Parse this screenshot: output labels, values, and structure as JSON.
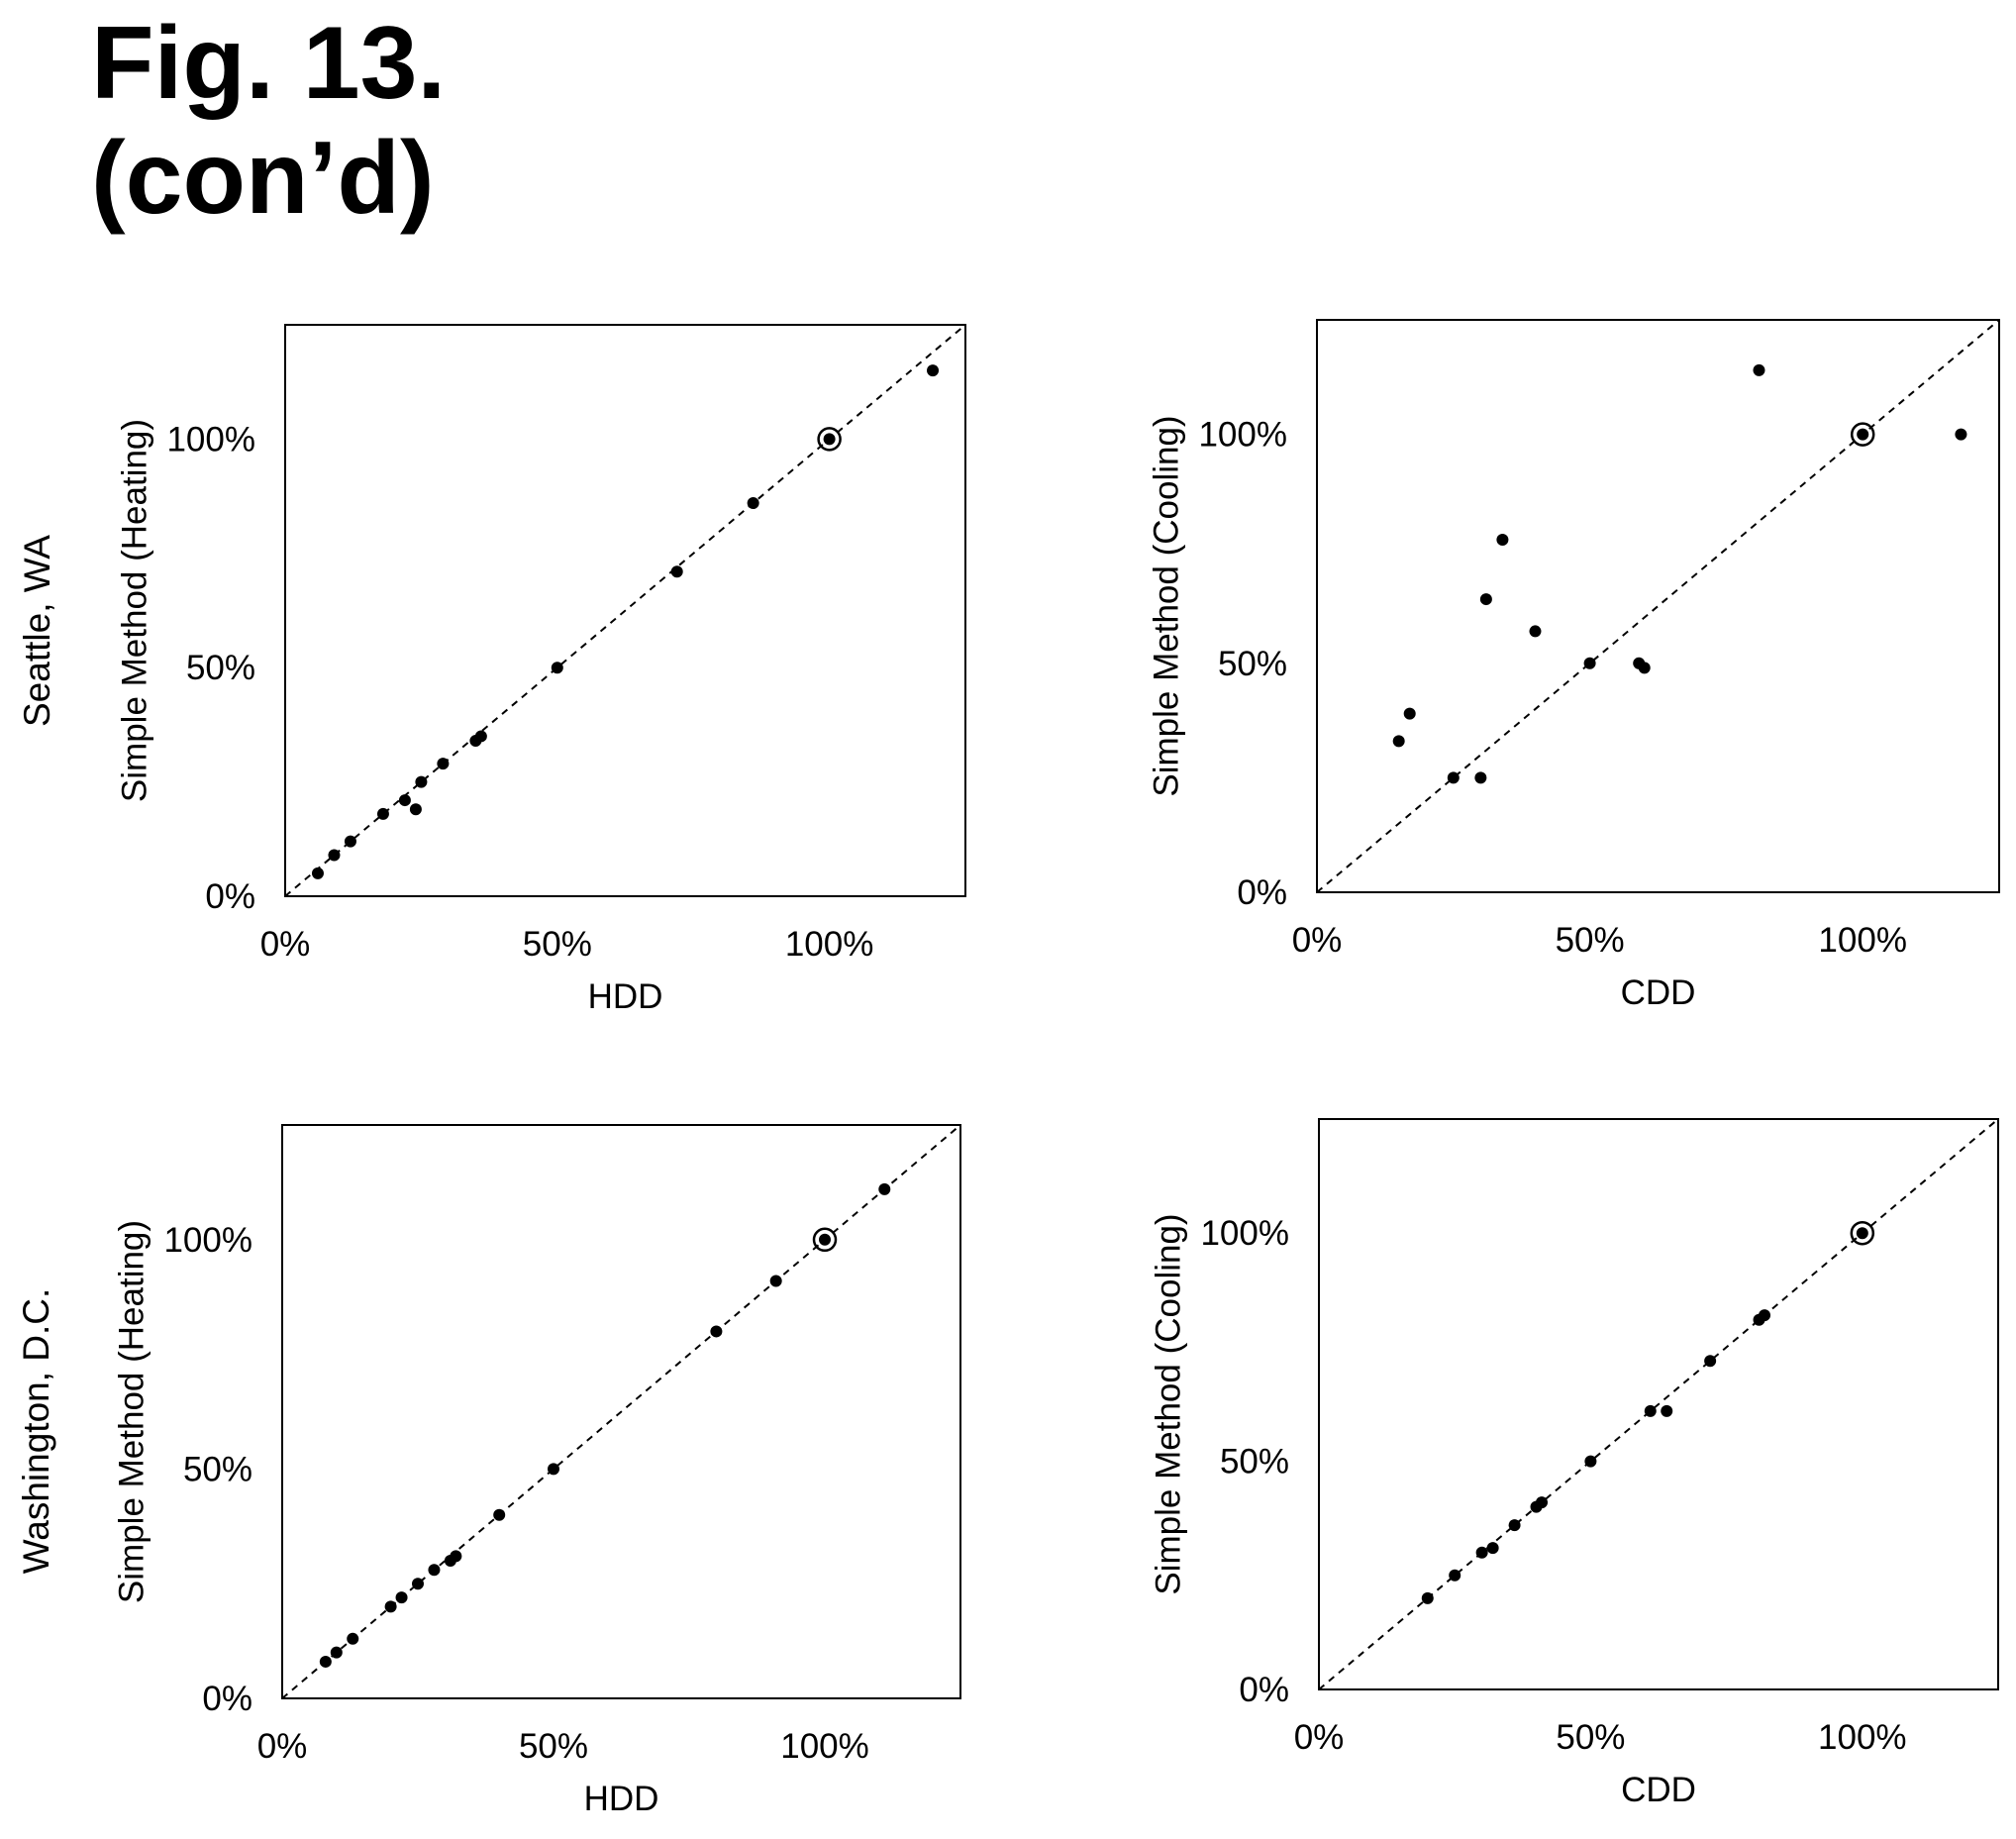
{
  "figure": {
    "title_line1": "Fig. 13.",
    "title_line2": "(con’d)",
    "row_labels": [
      "Seattle, WA",
      "Washington, D.C."
    ]
  },
  "chart_data": [
    {
      "type": "scatter",
      "row": "Seattle, WA",
      "xlabel": "HDD",
      "ylabel": "Simple Method (Heating)",
      "xlim": [
        0,
        125
      ],
      "ylim": [
        0,
        125
      ],
      "xticks": [
        0,
        50,
        100
      ],
      "yticks": [
        0,
        50,
        100
      ],
      "xtick_labels": [
        "0%",
        "50%",
        "100%"
      ],
      "ytick_labels": [
        "0%",
        "50%",
        "100%"
      ],
      "reference_line": "y = x (dashed)",
      "highlighted_point": [
        100,
        100
      ],
      "points": [
        [
          6,
          5
        ],
        [
          9,
          9
        ],
        [
          12,
          12
        ],
        [
          18,
          18
        ],
        [
          22,
          21
        ],
        [
          24,
          19
        ],
        [
          25,
          25
        ],
        [
          29,
          29
        ],
        [
          35,
          34
        ],
        [
          36,
          35
        ],
        [
          50,
          50
        ],
        [
          72,
          71
        ],
        [
          86,
          86
        ],
        [
          100,
          100
        ],
        [
          119,
          115
        ]
      ]
    },
    {
      "type": "scatter",
      "row": "Seattle, WA",
      "xlabel": "CDD",
      "ylabel": "Simple Method (Cooling)",
      "xlim": [
        0,
        125
      ],
      "ylim": [
        0,
        125
      ],
      "xticks": [
        0,
        50,
        100
      ],
      "yticks": [
        0,
        50,
        100
      ],
      "xtick_labels": [
        "0%",
        "50%",
        "100%"
      ],
      "ytick_labels": [
        "0%",
        "50%",
        "100%"
      ],
      "reference_line": "y = x (dashed)",
      "highlighted_point": [
        100,
        100
      ],
      "points": [
        [
          15,
          33
        ],
        [
          17,
          39
        ],
        [
          25,
          25
        ],
        [
          30,
          25
        ],
        [
          31,
          64
        ],
        [
          34,
          77
        ],
        [
          40,
          57
        ],
        [
          50,
          50
        ],
        [
          59,
          50
        ],
        [
          60,
          49
        ],
        [
          81,
          114
        ],
        [
          100,
          100
        ],
        [
          118,
          100
        ]
      ]
    },
    {
      "type": "scatter",
      "row": "Washington, D.C.",
      "xlabel": "HDD",
      "ylabel": "Simple Method (Heating)",
      "xlim": [
        0,
        125
      ],
      "ylim": [
        0,
        125
      ],
      "xticks": [
        0,
        50,
        100
      ],
      "yticks": [
        0,
        50,
        100
      ],
      "xtick_labels": [
        "0%",
        "50%",
        "100%"
      ],
      "ytick_labels": [
        "0%",
        "50%",
        "100%"
      ],
      "reference_line": "y = x (dashed)",
      "highlighted_point": [
        100,
        100
      ],
      "points": [
        [
          8,
          8
        ],
        [
          10,
          10
        ],
        [
          13,
          13
        ],
        [
          20,
          20
        ],
        [
          22,
          22
        ],
        [
          25,
          25
        ],
        [
          28,
          28
        ],
        [
          31,
          30
        ],
        [
          32,
          31
        ],
        [
          40,
          40
        ],
        [
          50,
          50
        ],
        [
          80,
          80
        ],
        [
          91,
          91
        ],
        [
          100,
          100
        ],
        [
          111,
          111
        ]
      ]
    },
    {
      "type": "scatter",
      "row": "Washington, D.C.",
      "xlabel": "CDD",
      "ylabel": "Simple Method (Cooling)",
      "xlim": [
        0,
        125
      ],
      "ylim": [
        0,
        125
      ],
      "xticks": [
        0,
        50,
        100
      ],
      "yticks": [
        0,
        50,
        100
      ],
      "xtick_labels": [
        "0%",
        "50%",
        "100%"
      ],
      "ytick_labels": [
        "0%",
        "50%",
        "100%"
      ],
      "reference_line": "y = x (dashed)",
      "highlighted_point": [
        100,
        100
      ],
      "points": [
        [
          20,
          20
        ],
        [
          25,
          25
        ],
        [
          30,
          30
        ],
        [
          32,
          31
        ],
        [
          36,
          36
        ],
        [
          40,
          40
        ],
        [
          41,
          41
        ],
        [
          50,
          50
        ],
        [
          61,
          61
        ],
        [
          64,
          61
        ],
        [
          72,
          72
        ],
        [
          81,
          81
        ],
        [
          82,
          82
        ],
        [
          100,
          100
        ]
      ]
    }
  ]
}
